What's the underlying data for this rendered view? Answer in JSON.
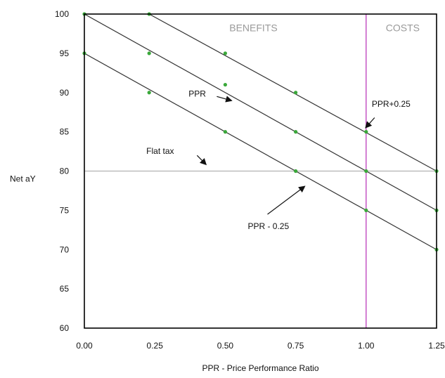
{
  "chart_data": {
    "type": "line",
    "xlabel": "PPR - Price Performance Ratio",
    "ylabel": "Net aY",
    "xlim": [
      0,
      1.25
    ],
    "ylim": [
      60,
      100
    ],
    "x_ticks": [
      0,
      0.25,
      0.5,
      0.75,
      1.0,
      1.25
    ],
    "x_tick_labels": [
      "0.00",
      "0.25",
      "0.50",
      "0.75",
      "1.00",
      "1.25"
    ],
    "y_ticks": [
      60,
      65,
      70,
      75,
      80,
      85,
      90,
      95,
      100
    ],
    "y_tick_labels": [
      "60",
      "65",
      "70",
      "75",
      "80",
      "85",
      "90",
      "95",
      "100"
    ],
    "grid": false,
    "series": [
      {
        "name": "PPR+0.25",
        "x": [
          0.23,
          0.5,
          0.75,
          1.0,
          1.25
        ],
        "y": [
          100,
          95,
          90,
          85,
          80
        ]
      },
      {
        "name": "PPR",
        "x": [
          0,
          0.23,
          0.5,
          0.75,
          1.0,
          1.25
        ],
        "y": [
          100,
          95,
          91,
          85,
          80,
          75
        ]
      },
      {
        "name": "PPR - 0.25",
        "x": [
          0,
          0.23,
          0.5,
          0.75,
          1.0,
          1.25
        ],
        "y": [
          95,
          90,
          85,
          80,
          75,
          70
        ]
      },
      {
        "name": "Flat tax",
        "x": [
          0,
          1.25
        ],
        "y": [
          80,
          80
        ]
      }
    ],
    "vertical_line_x": 1.0,
    "regions": [
      {
        "label": "BENEFITS",
        "x": 0.6,
        "y": 97.8
      },
      {
        "label": "COSTS",
        "x": 1.13,
        "y": 97.8
      }
    ],
    "annotations": [
      {
        "text": "PPR",
        "x": 0.37,
        "y": 89.5,
        "arrow_from": [
          0.47,
          89.5
        ],
        "arrow_to": [
          0.52,
          89.0
        ]
      },
      {
        "text": "PPR+0.25",
        "x": 1.02,
        "y": 88.2,
        "arrow_from": [
          1.03,
          86.8
        ],
        "arrow_to": [
          1.0,
          85.6
        ]
      },
      {
        "text": "Flat tax",
        "x": 0.22,
        "y": 82.2,
        "arrow_from": [
          0.4,
          82.0
        ],
        "arrow_to": [
          0.43,
          80.9
        ]
      },
      {
        "text": "PPR - 0.25",
        "x": 0.58,
        "y": 72.6,
        "arrow_from": [
          0.65,
          74.5
        ],
        "arrow_to": [
          0.78,
          78.0
        ]
      }
    ],
    "colors": {
      "series_line": "#333333",
      "marker": "#3aa83a",
      "flat_tax": "#bdbdbd",
      "vertical_line": "#b52bb5",
      "region_text": "#9a9a9a"
    }
  }
}
